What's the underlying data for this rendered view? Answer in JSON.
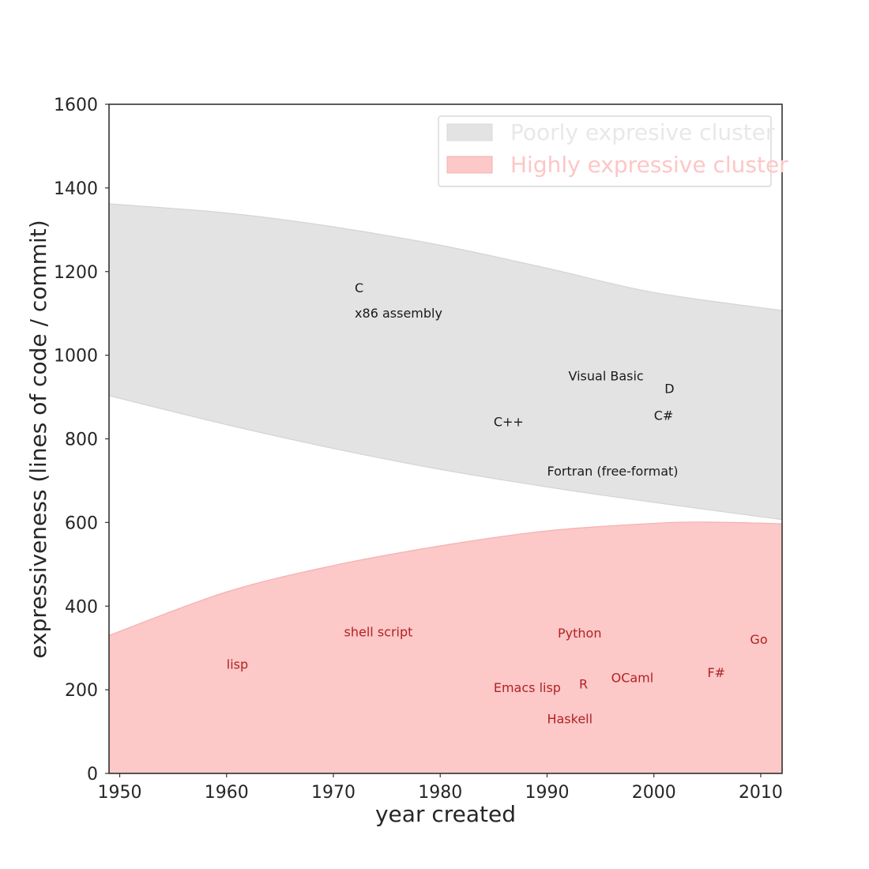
{
  "chart_data": {
    "type": "scatter",
    "title": "",
    "xlabel": "year created",
    "ylabel": "expressiveness (lines of code / commit)",
    "xlim": [
      1949,
      2012
    ],
    "ylim": [
      0,
      1600
    ],
    "xticks": [
      1950,
      1960,
      1970,
      1980,
      1990,
      2000,
      2010
    ],
    "yticks": [
      0,
      200,
      400,
      600,
      800,
      1000,
      1200,
      1400,
      1600
    ],
    "grid": false,
    "legend_position": "top-right",
    "series": [
      {
        "name": "Poorly expresive cluster",
        "color": "#e3e3e3",
        "text_color": "#e8e8e8",
        "label_color": "#1a1a1a",
        "band": {
          "years": [
            1949,
            1960,
            1970,
            1980,
            1990,
            2000,
            2012
          ],
          "upper": [
            1362,
            1340,
            1307,
            1263,
            1208,
            1150,
            1107
          ],
          "lower": [
            903,
            834,
            777,
            727,
            685,
            648,
            607
          ]
        },
        "points": [
          {
            "label": "C",
            "x": 1972,
            "y": 1150
          },
          {
            "label": "x86 assembly",
            "x": 1972,
            "y": 1090
          },
          {
            "label": "Visual Basic",
            "x": 1992,
            "y": 940
          },
          {
            "label": "D",
            "x": 2001,
            "y": 910
          },
          {
            "label": "C#",
            "x": 2000,
            "y": 845
          },
          {
            "label": "C++",
            "x": 1985,
            "y": 830
          },
          {
            "label": "Fortran (free-format)",
            "x": 1990,
            "y": 712
          }
        ]
      },
      {
        "name": "Highly expressive cluster",
        "color": "#fcc8c8",
        "text_color": "#fdc6c6",
        "label_color": "#b22222",
        "band": {
          "years": [
            1949,
            1960,
            1970,
            1980,
            1990,
            2000,
            2005,
            2012
          ],
          "upper": [
            330,
            434,
            497,
            544,
            580,
            598,
            601,
            597
          ],
          "lower": [
            0,
            0,
            0,
            0,
            0,
            0,
            0,
            0
          ]
        },
        "points": [
          {
            "label": "shell script",
            "x": 1971,
            "y": 328
          },
          {
            "label": "Python",
            "x": 1991,
            "y": 325
          },
          {
            "label": "Go",
            "x": 2009,
            "y": 310
          },
          {
            "label": "lisp",
            "x": 1960,
            "y": 250
          },
          {
            "label": "F#",
            "x": 2005,
            "y": 230
          },
          {
            "label": "OCaml",
            "x": 1996,
            "y": 218
          },
          {
            "label": "R",
            "x": 1993,
            "y": 203
          },
          {
            "label": "Emacs lisp",
            "x": 1985,
            "y": 195
          },
          {
            "label": "Haskell",
            "x": 1990,
            "y": 120
          }
        ]
      }
    ]
  }
}
